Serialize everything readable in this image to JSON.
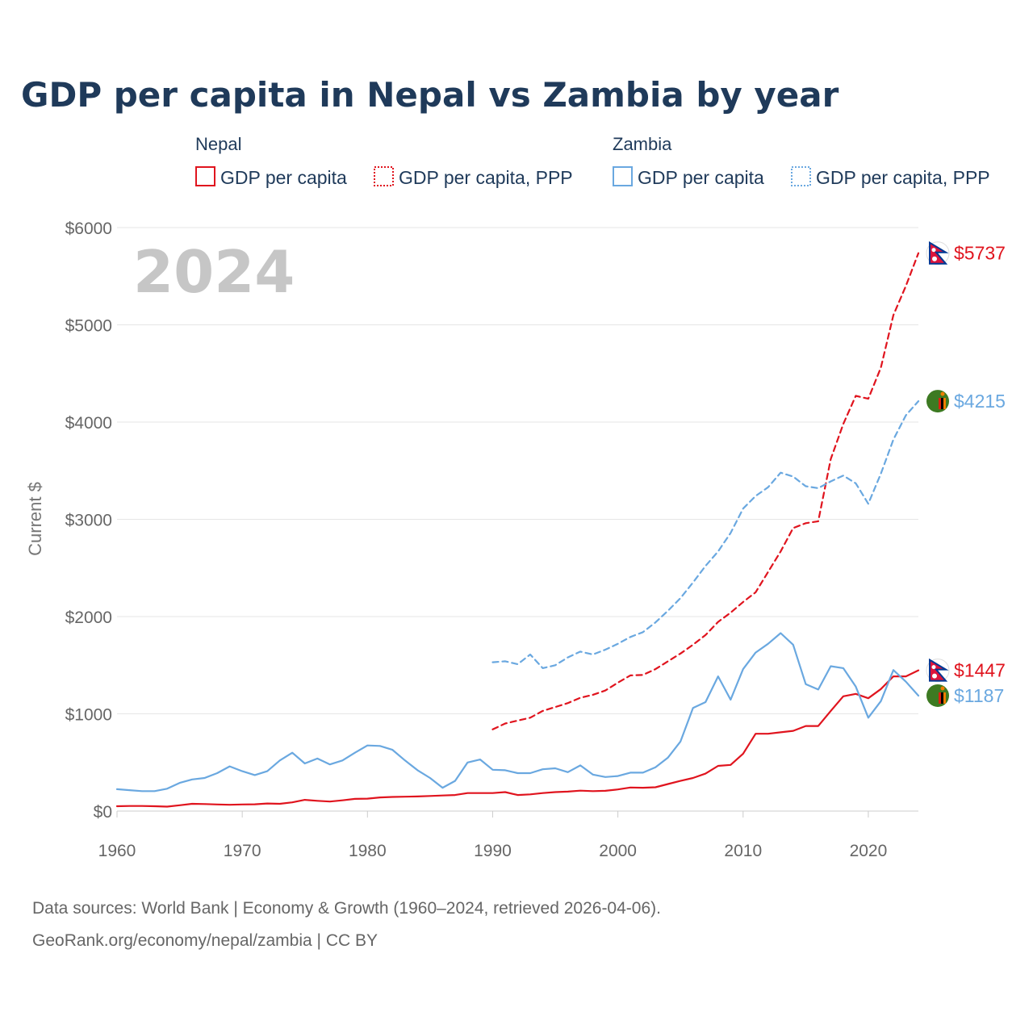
{
  "title": "GDP per capita in Nepal vs Zambia by year",
  "year_label": "2024",
  "legend": {
    "groups": [
      {
        "country": "Nepal",
        "color": "#e0141e",
        "items": [
          {
            "label": "GDP per capita",
            "style": "solid"
          },
          {
            "label": "GDP per capita, PPP",
            "style": "dashed"
          }
        ]
      },
      {
        "country": "Zambia",
        "color": "#6aa8e0",
        "items": [
          {
            "label": "GDP per capita",
            "style": "solid"
          },
          {
            "label": "GDP per capita, PPP",
            "style": "dashed"
          }
        ]
      }
    ]
  },
  "end_labels": [
    {
      "text": "$5737",
      "color": "#e0141e",
      "flag": "nepal-flag-icon"
    },
    {
      "text": "$4215",
      "color": "#6aa8e0",
      "flag": "zambia-flag-icon"
    },
    {
      "text": "$1447",
      "color": "#e0141e",
      "flag": "nepal-flag-icon"
    },
    {
      "text": "$1187",
      "color": "#6aa8e0",
      "flag": "zambia-flag-icon"
    }
  ],
  "footer": {
    "line1": "Data sources: World Bank | Economy & Growth (1960–2024, retrieved 2026-04-06).",
    "line2": "GeoRank.org/economy/nepal/zambia | CC BY"
  },
  "chart_data": {
    "type": "line",
    "title": "GDP per capita in Nepal vs Zambia by year",
    "xlabel": "",
    "ylabel": "Current $",
    "xlim": [
      1960,
      2024
    ],
    "ylim": [
      0,
      6000
    ],
    "x_ticks": [
      1960,
      1970,
      1980,
      1990,
      2000,
      2010,
      2020
    ],
    "y_ticks": [
      0,
      1000,
      2000,
      3000,
      4000,
      5000,
      6000
    ],
    "y_tick_labels": [
      "$0",
      "$1000",
      "$2000",
      "$3000",
      "$4000",
      "$5000",
      "$6000"
    ],
    "x_tick_labels": [
      "1960",
      "1970",
      "1980",
      "1990",
      "2000",
      "2010",
      "2020"
    ],
    "grid": true,
    "series": [
      {
        "name": "Nepal GDP per capita",
        "color": "#e0141e",
        "style": "solid",
        "x_start": 1960,
        "values": [
          50,
          52,
          52,
          50,
          46,
          60,
          75,
          72,
          68,
          65,
          68,
          70,
          78,
          75,
          90,
          115,
          105,
          98,
          110,
          125,
          128,
          140,
          145,
          148,
          150,
          155,
          160,
          165,
          185,
          185,
          185,
          195,
          165,
          172,
          185,
          195,
          200,
          210,
          205,
          208,
          222,
          242,
          240,
          245,
          278,
          310,
          340,
          385,
          465,
          475,
          590,
          795,
          795,
          810,
          825,
          875,
          875,
          1030,
          1180,
          1205,
          1160,
          1255,
          1385,
          1385,
          1447
        ]
      },
      {
        "name": "Nepal GDP per capita, PPP",
        "color": "#e0141e",
        "style": "dashed",
        "x_start": 1990,
        "values": [
          840,
          900,
          930,
          960,
          1030,
          1070,
          1110,
          1165,
          1195,
          1240,
          1320,
          1395,
          1400,
          1460,
          1540,
          1620,
          1710,
          1810,
          1945,
          2040,
          2150,
          2250,
          2460,
          2670,
          2910,
          2960,
          2980,
          3620,
          3980,
          4270,
          4240,
          4560,
          5100,
          5400,
          5737
        ]
      },
      {
        "name": "Zambia GDP per capita",
        "color": "#6aa8e0",
        "style": "solid",
        "x_start": 1960,
        "values": [
          225,
          215,
          205,
          205,
          230,
          290,
          325,
          340,
          390,
          460,
          410,
          370,
          410,
          520,
          600,
          490,
          540,
          480,
          520,
          600,
          675,
          670,
          630,
          520,
          420,
          340,
          240,
          310,
          500,
          530,
          425,
          420,
          390,
          390,
          430,
          440,
          400,
          470,
          375,
          350,
          360,
          395,
          395,
          450,
          550,
          715,
          1060,
          1120,
          1385,
          1145,
          1460,
          1630,
          1720,
          1830,
          1710,
          1305,
          1250,
          1490,
          1470,
          1280,
          960,
          1130,
          1450,
          1330,
          1187
        ]
      },
      {
        "name": "Zambia GDP per capita, PPP",
        "color": "#6aa8e0",
        "style": "dashed",
        "x_start": 1990,
        "values": [
          1530,
          1540,
          1510,
          1610,
          1470,
          1500,
          1580,
          1640,
          1610,
          1660,
          1720,
          1790,
          1840,
          1940,
          2060,
          2190,
          2350,
          2520,
          2670,
          2860,
          3110,
          3240,
          3330,
          3480,
          3440,
          3340,
          3320,
          3390,
          3450,
          3370,
          3160,
          3470,
          3820,
          4070,
          4215
        ]
      }
    ]
  }
}
